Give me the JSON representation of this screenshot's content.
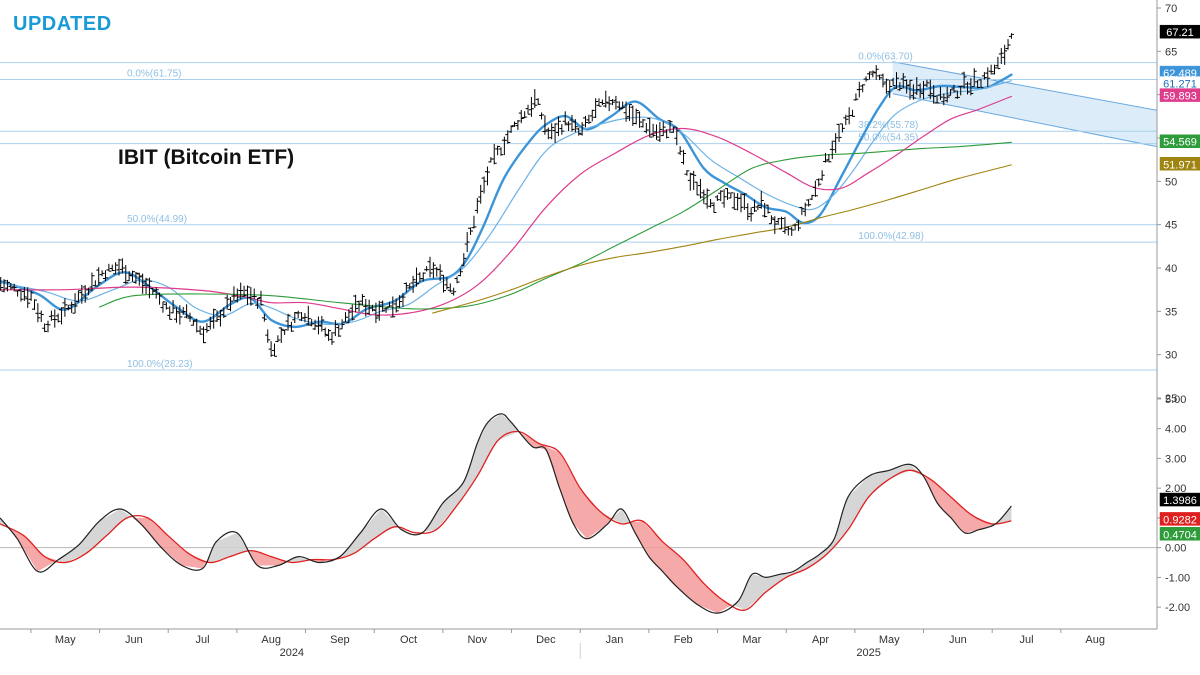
{
  "header": {
    "badge": "UPDATED",
    "title": "IBIT (Bitcoin ETF)"
  },
  "colors": {
    "accent": "#1a9ad6",
    "price_bar": "#000000",
    "ma_fast": "#3c95d8",
    "ma_med": "#6cb2e6",
    "ma_pink": "#de3b8c",
    "ma_green": "#2e9c39",
    "ma_gold": "#a08410",
    "fib_line": "#a9d1ee",
    "fib_text": "#8fbfe3",
    "channel_fill": "#d7e9f8",
    "channel_line": "#6aa9df",
    "osc_black": "#222222",
    "osc_red": "#e02020",
    "osc_fill_up": "#d2d2d2",
    "osc_fill_down": "#f39a9a"
  },
  "chart_data": [
    {
      "type": "ohlc",
      "title": "IBIT (Bitcoin ETF)",
      "ylim": [
        25,
        70
      ],
      "y_ticks": [
        "70",
        "65",
        "60",
        "55",
        "50",
        "45",
        "40",
        "35",
        "30",
        "25"
      ],
      "x_month_labels": [
        "May",
        "Jun",
        "Jul",
        "Aug",
        "Sep",
        "Oct",
        "Nov",
        "Dec",
        "Jan",
        "Feb",
        "Mar",
        "Apr",
        "May",
        "Jun",
        "Jul",
        "Aug"
      ],
      "x_year_labels": [
        "2024",
        "2025"
      ],
      "x_month_index": [
        0.0,
        1.0,
        2.0,
        3.0,
        4.0,
        5.0,
        6.0,
        7.0,
        8.0,
        9.0,
        10.0,
        11.0,
        12.0,
        13.0,
        14.0,
        15.0
      ],
      "x_year_index": [
        3.3,
        11.7
      ],
      "x_range": [
        -0.95,
        15.9
      ],
      "price_path": {
        "x": [
          -0.95,
          -0.5,
          -0.3,
          0.0,
          0.3,
          0.55,
          0.8,
          1.0,
          1.3,
          1.5,
          1.8,
          2.0,
          2.2,
          2.45,
          2.6,
          2.85,
          3.0,
          3.2,
          3.45,
          3.7,
          3.85,
          4.05,
          4.3,
          4.55,
          4.8,
          5.05,
          5.35,
          5.65,
          5.8,
          6.0,
          6.2,
          6.55,
          6.85,
          7.05,
          7.3,
          7.5,
          7.75,
          8.0,
          8.35,
          8.65,
          8.85,
          9.1,
          9.25,
          9.45,
          9.6,
          9.8,
          10.0,
          10.15,
          10.35,
          10.6,
          10.75,
          10.9,
          11.05,
          11.2,
          11.4,
          11.6,
          11.75,
          11.95,
          12.15,
          12.3,
          12.55,
          12.75,
          12.95,
          13.1,
          13.3,
          13.55,
          13.7,
          13.78
        ],
        "y": [
          38.2,
          36.8,
          33.5,
          35.0,
          37.5,
          39.5,
          40.2,
          39.0,
          37.2,
          35.2,
          34.5,
          32.6,
          34.0,
          36.5,
          37.2,
          36.2,
          30.5,
          33.0,
          35.0,
          33.5,
          32.0,
          33.8,
          36.0,
          35.3,
          35.8,
          38.0,
          40.0,
          37.5,
          41.0,
          47.0,
          52.0,
          56.5,
          59.5,
          55.2,
          57.0,
          55.5,
          58.5,
          59.5,
          57.0,
          55.5,
          56.2,
          50.0,
          49.2,
          47.5,
          48.0,
          48.0,
          46.5,
          47.5,
          45.0,
          44.0,
          46.5,
          48.5,
          51.8,
          54.5,
          57.0,
          61.0,
          62.5,
          61.0,
          61.4,
          60.5,
          61.2,
          59.6,
          60.2,
          61.2,
          61.6,
          63.0,
          65.0,
          67.3
        ]
      },
      "moving_averages": [
        {
          "name": "fast-ma",
          "color": "#3c95d8",
          "x": [
            -0.95,
            -0.4,
            0.0,
            0.45,
            0.85,
            1.2,
            1.6,
            2.0,
            2.4,
            2.7,
            3.0,
            3.35,
            3.7,
            4.05,
            4.4,
            4.8,
            5.2,
            5.6,
            5.85,
            6.1,
            6.4,
            6.8,
            7.05,
            7.3,
            7.6,
            7.95,
            8.3,
            8.65,
            8.95,
            9.3,
            9.6,
            9.9,
            10.2,
            10.5,
            10.75,
            11.0,
            11.3,
            11.6,
            11.85,
            12.1,
            12.4,
            12.75,
            13.05,
            13.4,
            13.6,
            13.78
          ],
          "y": [
            38.5,
            37.0,
            35.2,
            37.8,
            39.5,
            38.0,
            35.6,
            33.8,
            35.8,
            36.5,
            34.0,
            33.2,
            33.8,
            33.6,
            35.3,
            36.2,
            38.5,
            39.0,
            41.0,
            45.0,
            50.5,
            55.0,
            56.8,
            57.5,
            56.0,
            57.5,
            59.2,
            57.2,
            55.8,
            51.5,
            49.8,
            48.5,
            47.0,
            46.5,
            45.2,
            46.2,
            50.5,
            55.0,
            58.5,
            60.9,
            60.5,
            61.0,
            60.9,
            60.8,
            61.5,
            62.3
          ]
        },
        {
          "name": "medium-ma",
          "color": "#6cb2e6",
          "x": [
            -0.95,
            -0.3,
            0.2,
            0.7,
            1.1,
            1.5,
            1.9,
            2.3,
            2.7,
            3.0,
            3.35,
            3.8,
            4.2,
            4.6,
            5.0,
            5.4,
            5.8,
            6.2,
            6.6,
            7.0,
            7.4,
            7.8,
            8.2,
            8.6,
            9.0,
            9.4,
            9.8,
            10.2,
            10.6,
            10.9,
            11.2,
            11.5,
            11.8,
            12.1,
            12.5,
            12.9,
            13.3,
            13.78
          ],
          "y": [
            38.3,
            37.3,
            36.2,
            37.5,
            38.6,
            37.8,
            35.4,
            34.5,
            35.9,
            35.4,
            34.2,
            33.5,
            33.8,
            35.0,
            35.8,
            38.0,
            40.0,
            44.0,
            49.0,
            53.5,
            55.5,
            56.6,
            57.3,
            57.2,
            55.5,
            52.5,
            50.5,
            48.6,
            47.2,
            46.8,
            48.5,
            51.5,
            55.0,
            57.8,
            59.5,
            60.2,
            60.6,
            61.6
          ]
        },
        {
          "name": "pink-ma",
          "color": "#de3b8c",
          "x": [
            -0.95,
            0.0,
            1.0,
            2.0,
            2.6,
            3.0,
            3.5,
            4.0,
            4.5,
            5.0,
            5.5,
            6.0,
            6.5,
            7.0,
            7.5,
            8.0,
            8.5,
            9.0,
            9.5,
            10.0,
            10.5,
            10.9,
            11.3,
            11.7,
            12.1,
            12.5,
            12.9,
            13.3,
            13.78
          ],
          "y": [
            37.5,
            37.5,
            37.8,
            37.4,
            36.7,
            36.0,
            36.0,
            35.3,
            34.6,
            34.8,
            35.8,
            38.0,
            42.0,
            47.0,
            50.8,
            53.2,
            55.3,
            56.1,
            55.1,
            53.2,
            51.0,
            49.3,
            49.2,
            51.0,
            53.0,
            55.2,
            57.2,
            58.3,
            59.8
          ]
        },
        {
          "name": "green-ma",
          "color": "#2e9c39",
          "x": [
            0.5,
            1.0,
            2.0,
            3.0,
            4.0,
            5.0,
            5.6,
            6.0,
            6.5,
            7.0,
            7.5,
            8.0,
            8.5,
            9.0,
            9.5,
            10.0,
            10.5,
            11.0,
            11.5,
            12.0,
            12.5,
            13.0,
            13.78
          ],
          "y": [
            35.5,
            36.8,
            37.0,
            36.8,
            36.0,
            35.3,
            35.4,
            35.8,
            37.0,
            38.8,
            40.5,
            42.5,
            44.5,
            46.5,
            49.0,
            51.5,
            52.5,
            53.0,
            53.2,
            53.5,
            53.8,
            54.0,
            54.5
          ]
        },
        {
          "name": "gold-ma",
          "color": "#a08410",
          "x": [
            5.35,
            6.0,
            6.5,
            7.0,
            7.5,
            8.0,
            8.5,
            9.0,
            9.5,
            10.0,
            10.5,
            11.0,
            11.5,
            12.0,
            12.5,
            13.0,
            13.78
          ],
          "y": [
            34.8,
            36.2,
            37.5,
            39.0,
            40.3,
            41.2,
            41.8,
            42.5,
            43.3,
            44.0,
            44.7,
            45.8,
            46.8,
            47.9,
            49.1,
            50.3,
            51.9
          ]
        }
      ],
      "fib_levels": [
        {
          "label": "0.0%(61.75)",
          "value": 61.75,
          "x_start": 0.9
        },
        {
          "label": "0.0%(63.70)",
          "value": 63.7,
          "x_start": 11.55
        },
        {
          "label": "38.2%(55.78)",
          "value": 55.78,
          "x_start": 11.55
        },
        {
          "label": "50.0%(54.35)",
          "value": 54.35,
          "x_start": 11.55
        },
        {
          "label": "50.0%(44.99)",
          "value": 44.99,
          "x_start": 0.9
        },
        {
          "label": "100.0%(42.98)",
          "value": 42.98,
          "x_start": 11.55
        },
        {
          "label": "100.0%(28.23)",
          "value": 28.23,
          "x_start": 0.9
        }
      ],
      "fib_line_values": [
        63.7,
        61.75,
        55.78,
        54.35,
        44.99,
        42.98,
        28.23
      ],
      "channel": {
        "x": [
          12.05,
          15.9
        ],
        "upper": [
          63.8,
          58.2
        ],
        "lower": [
          60.1,
          54.0
        ]
      },
      "price_labels": [
        {
          "value": "67.21",
          "bg": "#000000",
          "fg": "#ffffff",
          "y": 67.21
        },
        {
          "value": "62.489",
          "bg": "#3c95d8",
          "fg": "#ffffff",
          "y": 62.489
        },
        {
          "value": "61.271",
          "bg": "#ffffff",
          "fg": "#1e6fb8",
          "y": 61.271
        },
        {
          "value": "59.893",
          "bg": "#de3b8c",
          "fg": "#ffffff",
          "y": 59.893
        },
        {
          "value": "54.569",
          "bg": "#2e9c39",
          "fg": "#ffffff",
          "y": 54.569
        },
        {
          "value": "51.971",
          "bg": "#a08410",
          "fg": "#ffffff",
          "y": 51.971
        }
      ]
    },
    {
      "type": "line",
      "title": "MACD-style oscillator",
      "ylim": [
        -2.6,
        5.3
      ],
      "y_ticks": [
        {
          "label": "5.00",
          "value": 5
        },
        {
          "label": "4.00",
          "value": 4
        },
        {
          "label": "3.00",
          "value": 3
        },
        {
          "label": "2.00",
          "value": 2
        },
        {
          "label": "1.00",
          "value": 1
        },
        {
          "label": "0.00",
          "value": 0
        },
        {
          "label": "-1.00",
          "value": -1
        },
        {
          "label": "-2.00",
          "value": -2
        }
      ],
      "series": [
        {
          "name": "fast-line",
          "color": "#222222",
          "x": [
            -0.95,
            -0.7,
            -0.4,
            -0.1,
            0.2,
            0.5,
            0.8,
            1.1,
            1.4,
            1.7,
            2.0,
            2.2,
            2.5,
            2.8,
            3.1,
            3.4,
            3.7,
            4.0,
            4.3,
            4.6,
            4.9,
            5.2,
            5.5,
            5.8,
            6.0,
            6.15,
            6.35,
            6.5,
            6.8,
            7.0,
            7.2,
            7.4,
            7.6,
            7.9,
            8.1,
            8.3,
            8.5,
            8.7,
            8.9,
            9.2,
            9.5,
            9.8,
            10.0,
            10.2,
            10.4,
            10.6,
            10.8,
            11.0,
            11.2,
            11.4,
            11.7,
            12.0,
            12.3,
            12.5,
            12.7,
            12.9,
            13.1,
            13.3,
            13.55,
            13.78
          ],
          "y": [
            1.0,
            0.3,
            -0.8,
            -0.4,
            0.1,
            0.9,
            1.3,
            0.8,
            0.0,
            -0.6,
            -0.7,
            0.2,
            0.5,
            -0.6,
            -0.6,
            -0.3,
            -0.5,
            -0.3,
            0.5,
            1.3,
            0.6,
            0.5,
            1.5,
            2.2,
            3.5,
            4.2,
            4.5,
            4.2,
            3.4,
            3.3,
            2.0,
            0.8,
            0.3,
            0.8,
            1.3,
            0.5,
            -0.3,
            -0.8,
            -1.3,
            -1.9,
            -2.2,
            -1.8,
            -0.9,
            -1.0,
            -0.9,
            -0.8,
            -0.5,
            -0.2,
            0.3,
            1.7,
            2.4,
            2.6,
            2.8,
            2.4,
            1.5,
            1.0,
            0.5,
            0.6,
            0.8,
            1.4
          ]
        },
        {
          "name": "signal-line",
          "color": "#e02020",
          "x": [
            -0.95,
            -0.6,
            -0.3,
            0.0,
            0.3,
            0.6,
            0.9,
            1.2,
            1.5,
            1.8,
            2.1,
            2.4,
            2.7,
            3.0,
            3.3,
            3.6,
            3.9,
            4.2,
            4.5,
            4.8,
            5.1,
            5.4,
            5.7,
            6.0,
            6.3,
            6.6,
            6.9,
            7.2,
            7.5,
            7.8,
            8.1,
            8.4,
            8.7,
            9.0,
            9.3,
            9.6,
            9.9,
            10.2,
            10.5,
            10.8,
            11.1,
            11.4,
            11.7,
            12.0,
            12.3,
            12.6,
            12.9,
            13.2,
            13.5,
            13.78
          ],
          "y": [
            0.8,
            0.4,
            -0.3,
            -0.5,
            -0.2,
            0.4,
            1.0,
            1.0,
            0.4,
            -0.2,
            -0.5,
            -0.3,
            -0.1,
            -0.3,
            -0.5,
            -0.4,
            -0.4,
            -0.2,
            0.3,
            0.7,
            0.5,
            0.6,
            1.4,
            2.4,
            3.6,
            3.9,
            3.5,
            3.2,
            2.0,
            1.2,
            0.8,
            0.9,
            0.2,
            -0.4,
            -1.2,
            -1.8,
            -2.1,
            -1.5,
            -1.0,
            -0.7,
            -0.2,
            0.6,
            1.7,
            2.3,
            2.6,
            2.3,
            1.7,
            1.1,
            0.8,
            0.9
          ]
        }
      ],
      "value_labels": [
        {
          "value": "1.3986",
          "bg": "#000000",
          "fg": "#ffffff",
          "y": 1.6
        },
        {
          "value": "0.9282",
          "bg": "#e02020",
          "fg": "#ffffff",
          "y": 0.95
        },
        {
          "value": "0.4704",
          "bg": "#2e9c39",
          "fg": "#ffffff",
          "y": 0.45
        }
      ]
    }
  ]
}
